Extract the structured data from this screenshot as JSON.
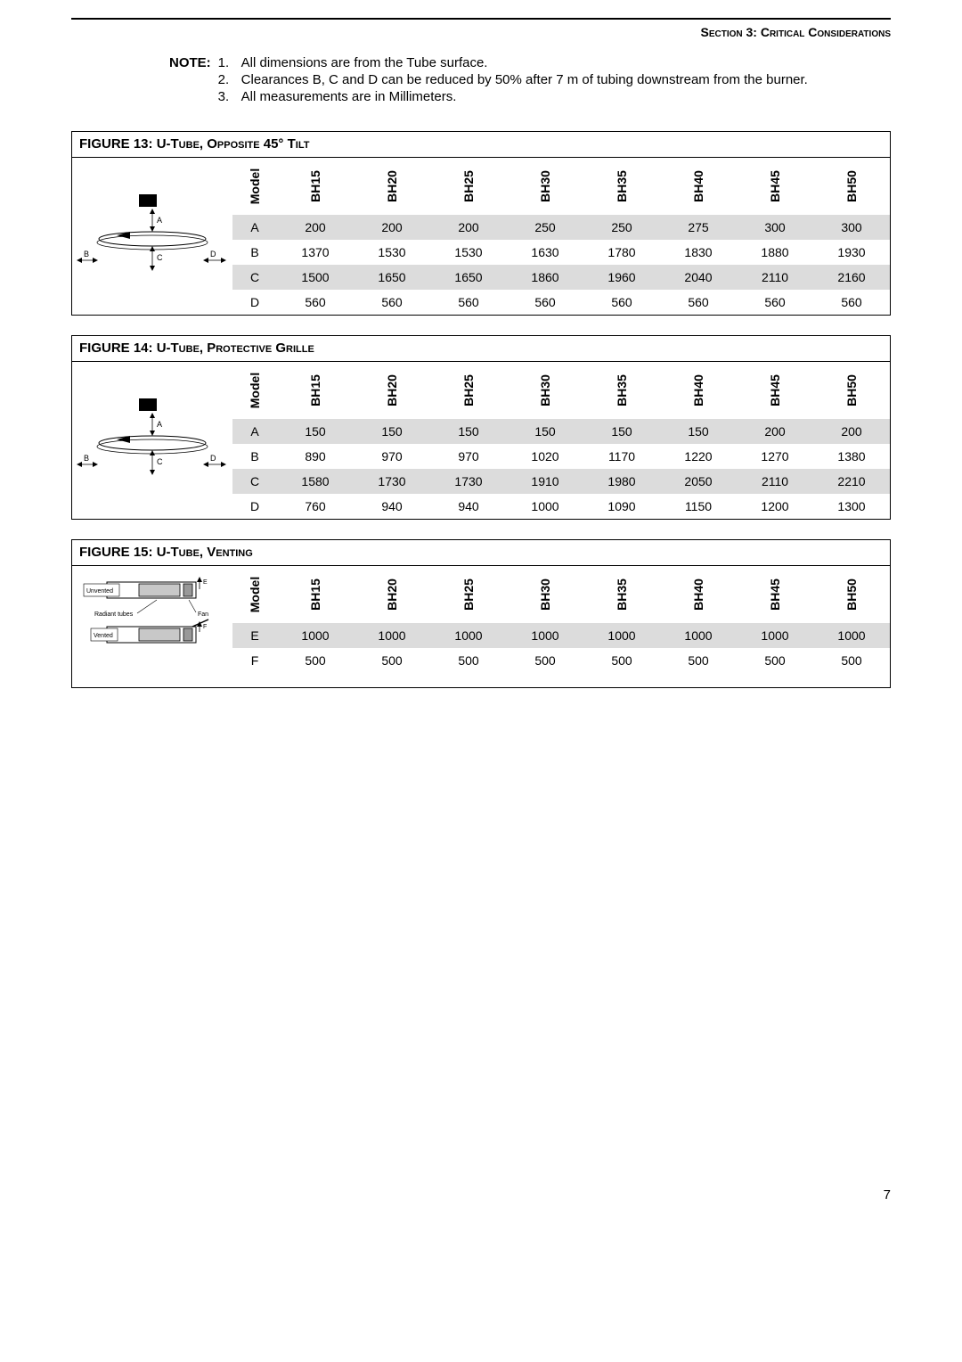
{
  "header": {
    "section_label": "Section 3: Critical Considerations"
  },
  "note": {
    "label": "NOTE:",
    "items": [
      {
        "num": "1.",
        "text": "All dimensions are from the Tube surface."
      },
      {
        "num": "2.",
        "text": "Clearances B, C and D can be reduced by 50% after 7 m of tubing downstream from the burner."
      },
      {
        "num": "3.",
        "text": "All measurements are in Millimeters."
      }
    ]
  },
  "figures": [
    {
      "id": "fig13",
      "prefix": "FIGURE 13:",
      "name": "U-Tube, Opposite 45° Tilt",
      "diagram": "tilt",
      "columns": [
        "Model",
        "BH15",
        "BH20",
        "BH25",
        "BH30",
        "BH35",
        "BH40",
        "BH45",
        "BH50"
      ],
      "rows": [
        {
          "label": "A",
          "shaded": true,
          "values": [
            200,
            200,
            200,
            250,
            250,
            275,
            300,
            300
          ]
        },
        {
          "label": "B",
          "shaded": false,
          "values": [
            1370,
            1530,
            1530,
            1630,
            1780,
            1830,
            1880,
            1930
          ]
        },
        {
          "label": "C",
          "shaded": true,
          "values": [
            1500,
            1650,
            1650,
            1860,
            1960,
            2040,
            2110,
            2160
          ]
        },
        {
          "label": "D",
          "shaded": false,
          "values": [
            560,
            560,
            560,
            560,
            560,
            560,
            560,
            560
          ]
        }
      ]
    },
    {
      "id": "fig14",
      "prefix": "FIGURE 14:",
      "name": "U-Tube, Protective Grille",
      "diagram": "tilt",
      "columns": [
        "Model",
        "BH15",
        "BH20",
        "BH25",
        "BH30",
        "BH35",
        "BH40",
        "BH45",
        "BH50"
      ],
      "rows": [
        {
          "label": "A",
          "shaded": true,
          "values": [
            150,
            150,
            150,
            150,
            150,
            150,
            200,
            200
          ]
        },
        {
          "label": "B",
          "shaded": false,
          "values": [
            890,
            970,
            970,
            1020,
            1170,
            1220,
            1270,
            1380
          ]
        },
        {
          "label": "C",
          "shaded": true,
          "values": [
            1580,
            1730,
            1730,
            1910,
            1980,
            2050,
            2110,
            2210
          ]
        },
        {
          "label": "D",
          "shaded": false,
          "values": [
            760,
            940,
            940,
            1000,
            1090,
            1150,
            1200,
            1300
          ]
        }
      ]
    },
    {
      "id": "fig15",
      "prefix": "FIGURE 15:",
      "name": "U-Tube, Venting",
      "diagram": "vent",
      "columns": [
        "Model",
        "BH15",
        "BH20",
        "BH25",
        "BH30",
        "BH35",
        "BH40",
        "BH45",
        "BH50"
      ],
      "rows": [
        {
          "label": "E",
          "shaded": true,
          "values": [
            1000,
            1000,
            1000,
            1000,
            1000,
            1000,
            1000,
            1000
          ]
        },
        {
          "label": "F",
          "shaded": false,
          "values": [
            500,
            500,
            500,
            500,
            500,
            500,
            500,
            500
          ]
        },
        {
          "label": "",
          "shaded": false,
          "values": [
            "",
            "",
            "",
            "",
            "",
            "",
            "",
            ""
          ]
        }
      ]
    }
  ],
  "page_number": "7",
  "diagrams": {
    "tilt": {
      "labels": {
        "A": "A",
        "B": "B",
        "C": "C",
        "D": "D"
      }
    },
    "vent": {
      "unvented_label": "Unvented",
      "vented_label": "Vented",
      "radiant_label": "Radiant tubes",
      "fan_label": "Fan",
      "E": "E",
      "F": "F"
    }
  }
}
